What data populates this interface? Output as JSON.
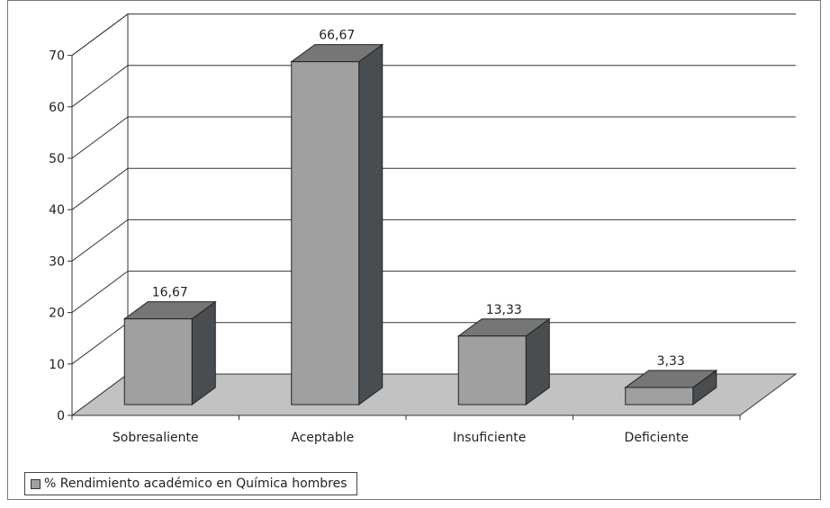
{
  "chart_data": {
    "type": "bar",
    "categories": [
      "Sobresaliente",
      "Aceptable",
      "Insuficiente",
      "Deficiente"
    ],
    "series": [
      {
        "name": "% Rendimiento académico en Química hombres",
        "values": [
          16.67,
          66.67,
          13.33,
          3.33
        ]
      }
    ],
    "value_labels": [
      "16,67",
      "66,67",
      "13,33",
      "3,33"
    ],
    "y_ticks": [
      "0",
      "10",
      "20",
      "30",
      "40",
      "50",
      "60",
      "70"
    ],
    "ylim": [
      0,
      70
    ],
    "grid": true,
    "style": "3d-column",
    "legend_position": "bottom-left",
    "colors": {
      "bar_front": "#a0a0a0",
      "bar_top": "#767676",
      "bar_side": "#4a4d4f",
      "floor": "#c2c2c2"
    }
  },
  "legend": {
    "label": "% Rendimiento académico en Química hombres"
  }
}
